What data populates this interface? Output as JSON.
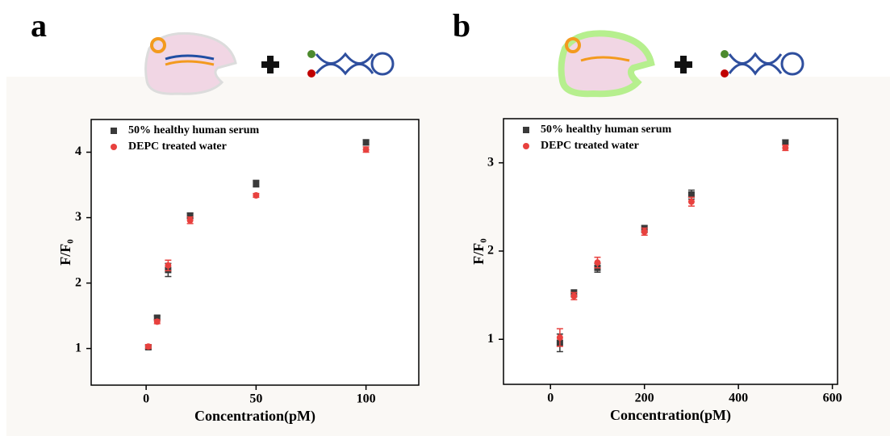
{
  "chart_data": [
    {
      "type": "scatter",
      "panel": "a",
      "x_label": "Concentration(pM)",
      "y_label": "F/F₀",
      "xlim": [
        -25,
        124
      ],
      "ylim": [
        0.44,
        4.5
      ],
      "xticks": [
        0,
        50,
        100
      ],
      "yticks": [
        1,
        2,
        3,
        4
      ],
      "series": [
        {
          "name": "50% healthy human serum",
          "color": "#3a3a3a",
          "marker": "square",
          "x": [
            1,
            5,
            10,
            20,
            50,
            100
          ],
          "values": [
            1.02,
            1.47,
            2.2,
            3.03,
            3.52,
            4.15
          ],
          "errors": [
            0.03,
            0.03,
            0.1,
            0.04,
            0.05,
            0.04
          ]
        },
        {
          "name": "DEPC treated water",
          "color": "#e8413e",
          "marker": "circle",
          "x": [
            1,
            5,
            10,
            20,
            50,
            100
          ],
          "values": [
            1.03,
            1.41,
            2.27,
            2.96,
            3.34,
            4.04
          ],
          "errors": [
            0.03,
            0.03,
            0.08,
            0.05,
            0.03,
            0.04
          ]
        }
      ]
    },
    {
      "type": "scatter",
      "panel": "b",
      "x_label": "Concentration(pM)",
      "y_label": "F/F₀",
      "xlim": [
        -100,
        611
      ],
      "ylim": [
        0.49,
        3.5
      ],
      "xticks": [
        0,
        200,
        400,
        600
      ],
      "yticks": [
        1,
        2,
        3
      ],
      "series": [
        {
          "name": "50% healthy human serum",
          "color": "#3a3a3a",
          "marker": "square",
          "x": [
            20,
            50,
            100,
            200,
            300,
            500
          ],
          "values": [
            0.96,
            1.52,
            1.81,
            2.25,
            2.64,
            3.23
          ],
          "errors": [
            0.1,
            0.04,
            0.05,
            0.04,
            0.05,
            0.03
          ]
        },
        {
          "name": "DEPC treated water",
          "color": "#e8413e",
          "marker": "circle",
          "x": [
            20,
            50,
            100,
            200,
            300,
            500
          ],
          "values": [
            1.02,
            1.49,
            1.87,
            2.22,
            2.56,
            3.17
          ],
          "errors": [
            0.1,
            0.04,
            0.06,
            0.04,
            0.05,
            0.03
          ]
        }
      ]
    }
  ]
}
